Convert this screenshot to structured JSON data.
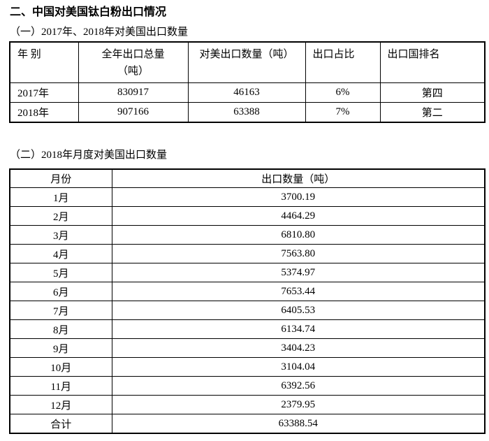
{
  "page": {
    "title": "二、中国对美国钛白粉出口情况",
    "section1_label": "（一）2017年、2018年对美国出口数量",
    "section2_label": "（二）2018年月度对美国出口数量"
  },
  "annual_table": {
    "headers": [
      "年 别",
      "全年出口总量\n（吨）",
      "对美出口数量（吨）",
      "出口占比",
      "出口国排名"
    ],
    "rows": [
      [
        "2017年",
        "830917",
        "46163",
        "6%",
        "第四"
      ],
      [
        "2018年",
        "907166",
        "63388",
        "7%",
        "第二"
      ]
    ]
  },
  "monthly_table": {
    "headers": [
      "月份",
      "出口数量（吨）"
    ],
    "rows": [
      [
        "1月",
        "3700.19"
      ],
      [
        "2月",
        "4464.29"
      ],
      [
        "3月",
        "6810.80"
      ],
      [
        "4月",
        "7563.80"
      ],
      [
        "5月",
        "5374.97"
      ],
      [
        "6月",
        "7653.44"
      ],
      [
        "7月",
        "6405.53"
      ],
      [
        "8月",
        "6134.74"
      ],
      [
        "9月",
        "3404.23"
      ],
      [
        "10月",
        "3104.04"
      ],
      [
        "11月",
        "6392.56"
      ],
      [
        "12月",
        "2379.95"
      ],
      [
        "合计",
        "63388.54"
      ]
    ]
  }
}
